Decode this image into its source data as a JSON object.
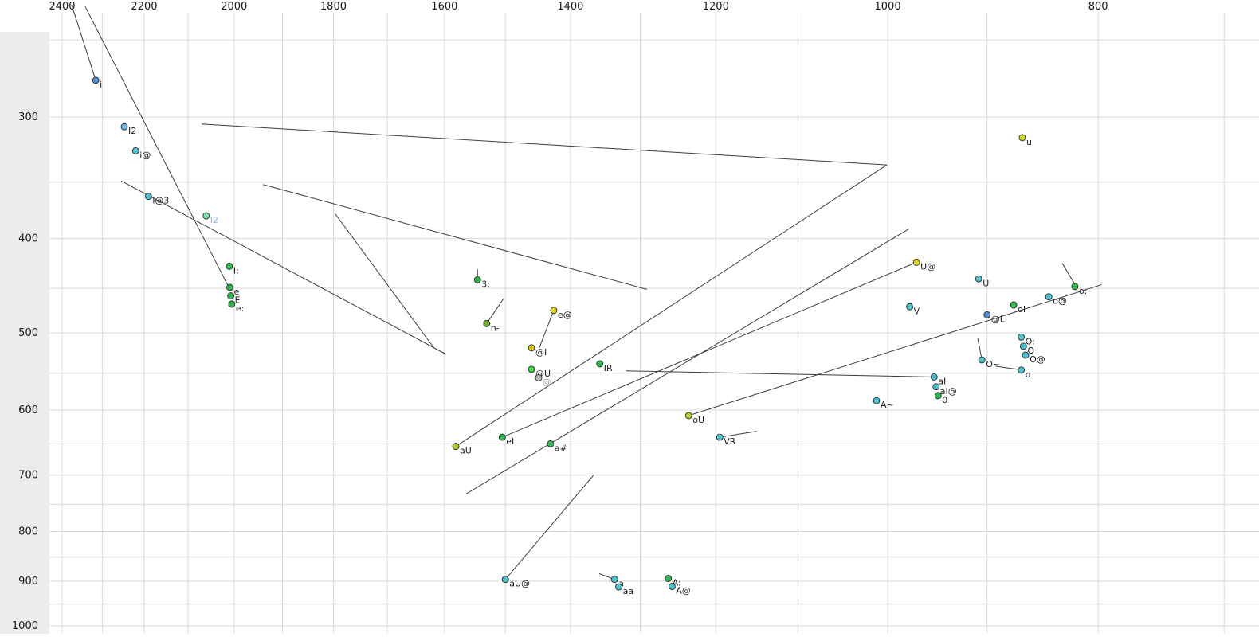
{
  "chart_data": {
    "type": "scatter",
    "title": "",
    "x_axis": {
      "scale": "log",
      "reversed": true,
      "tick_labels": [
        2400,
        2200,
        2000,
        1800,
        1600,
        1400,
        1200,
        1000,
        800
      ],
      "grid": {
        "from": 2400,
        "to": 700,
        "step": 100
      }
    },
    "y_axis": {
      "scale": "log",
      "reversed": true,
      "tick_labels": [
        300,
        400,
        500,
        600,
        700,
        800,
        900,
        1000
      ],
      "grid": {
        "from": 250,
        "to": 1000,
        "step": 50
      }
    },
    "colors": {
      "grid": "#d8d8d8",
      "trajectory_line": "#3c3c3c",
      "tick_text": "#1a1a1a",
      "point_stroke": "#2a2a2a",
      "default_label": "#1a1a1a",
      "left_band": "#ececec"
    },
    "points": [
      {
        "label": "i",
        "f2": 2316,
        "f1": 275,
        "color": "#4f8fd4"
      },
      {
        "label": "I2",
        "f2": 2247,
        "f1": 307,
        "color": "#6fb7e8"
      },
      {
        "label": "i@",
        "f2": 2220,
        "f1": 325,
        "color": "#49c3cf"
      },
      {
        "label": "i@3",
        "f2": 2190,
        "f1": 362,
        "color": "#49c3cf"
      },
      {
        "label": "I2",
        "f2": 2060,
        "f1": 379,
        "color": "#7be6b4",
        "label_color": "#8ab4e8"
      },
      {
        "label": "I:",
        "f2": 2010,
        "f1": 427,
        "color": "#2eb84d"
      },
      {
        "label": "e",
        "f2": 2009,
        "f1": 449,
        "color": "#2eb84d"
      },
      {
        "label": "E",
        "f2": 2007,
        "f1": 458,
        "color": "#2eb84d"
      },
      {
        "label": "e:",
        "f2": 2005,
        "f1": 467,
        "color": "#2eb84d"
      },
      {
        "label": "3:",
        "f2": 1545,
        "f1": 441,
        "color": "#2eb84d"
      },
      {
        "label": "n-",
        "f2": 1530,
        "f1": 489,
        "color": "#66b022"
      },
      {
        "label": "e@",
        "f2": 1425,
        "f1": 474,
        "color": "#e3d61f"
      },
      {
        "label": "@I",
        "f2": 1459,
        "f1": 518,
        "color": "#d6c51d"
      },
      {
        "label": "@U",
        "f2": 1459,
        "f1": 545,
        "color": "#3ed43e"
      },
      {
        "label": "@",
        "f2": 1448,
        "f1": 556,
        "color": "#bbbbbb",
        "label_color": "#9a9a9a"
      },
      {
        "label": "IR",
        "f2": 1357,
        "f1": 538,
        "color": "#2eb84d"
      },
      {
        "label": "aU",
        "f2": 1581,
        "f1": 654,
        "color": "#b5cf1f"
      },
      {
        "label": "eI",
        "f2": 1505,
        "f1": 640,
        "color": "#2eb84d"
      },
      {
        "label": "a#",
        "f2": 1430,
        "f1": 650,
        "color": "#2eb84d"
      },
      {
        "label": "oU",
        "f2": 1235,
        "f1": 608,
        "color": "#b5cf1f"
      },
      {
        "label": "VR",
        "f2": 1195,
        "f1": 640,
        "color": "#49c3cf"
      },
      {
        "label": "aU@",
        "f2": 1500,
        "f1": 896,
        "color": "#49c3cf"
      },
      {
        "label": "a",
        "f2": 1336,
        "f1": 896,
        "color": "#49c3cf"
      },
      {
        "label": "aa",
        "f2": 1330,
        "f1": 912,
        "color": "#49c3cf"
      },
      {
        "label": "A:",
        "f2": 1262,
        "f1": 894,
        "color": "#2eb84d"
      },
      {
        "label": "A@",
        "f2": 1257,
        "f1": 911,
        "color": "#49c3cf"
      },
      {
        "label": "U@",
        "f2": 970,
        "f1": 423,
        "color": "#e3d61f"
      },
      {
        "label": "u",
        "f2": 867,
        "f1": 315,
        "color": "#cde01f"
      },
      {
        "label": "U",
        "f2": 908,
        "f1": 440,
        "color": "#49c3cf"
      },
      {
        "label": "V",
        "f2": 977,
        "f1": 470,
        "color": "#49c3cf"
      },
      {
        "label": "@L",
        "f2": 900,
        "f1": 479,
        "color": "#4f8fd4"
      },
      {
        "label": "oI",
        "f2": 875,
        "f1": 468,
        "color": "#2eb84d"
      },
      {
        "label": "o@",
        "f2": 843,
        "f1": 459,
        "color": "#49c3cf"
      },
      {
        "label": "o:",
        "f2": 820,
        "f1": 448,
        "color": "#2eb84d"
      },
      {
        "label": "O:",
        "f2": 868,
        "f1": 505,
        "color": "#49c3cf"
      },
      {
        "label": "O",
        "f2": 866,
        "f1": 516,
        "color": "#49c3cf"
      },
      {
        "label": "O@",
        "f2": 864,
        "f1": 527,
        "color": "#49c3cf"
      },
      {
        "label": "O~",
        "f2": 905,
        "f1": 533,
        "color": "#49c3cf"
      },
      {
        "label": "o",
        "f2": 868,
        "f1": 546,
        "color": "#49c3cf"
      },
      {
        "label": "aI",
        "f2": 952,
        "f1": 555,
        "color": "#49c3cf"
      },
      {
        "label": "aI@",
        "f2": 950,
        "f1": 568,
        "color": "#49c3cf"
      },
      {
        "label": "0",
        "f2": 948,
        "f1": 580,
        "color": "#2eb84d"
      },
      {
        "label": "A~",
        "f2": 1012,
        "f1": 587,
        "color": "#49c3cf"
      }
    ],
    "lines": [
      {
        "f2a": 2376,
        "f1a": 230,
        "f2b": 2316,
        "f1b": 275
      },
      {
        "f2a": 2342,
        "f1a": 231,
        "f2b": 2009,
        "f1b": 451
      },
      {
        "f2a": 2254,
        "f1a": 349,
        "f2b": 1597,
        "f1b": 526
      },
      {
        "f2a": 2070,
        "f1a": 305,
        "f2b": 1001,
        "f1b": 336
      },
      {
        "f2a": 1939,
        "f1a": 352,
        "f2b": 1291,
        "f1b": 451
      },
      {
        "f2a": 1797,
        "f1a": 377,
        "f2b": 1618,
        "f1b": 518
      },
      {
        "f2a": 1001,
        "f1a": 336,
        "f2b": 1581,
        "f1b": 654
      },
      {
        "f2a": 978,
        "f1a": 391,
        "f2b": 1564,
        "f1b": 732
      },
      {
        "f2a": 970,
        "f1a": 423,
        "f2b": 1505,
        "f1b": 640
      },
      {
        "f2a": 1320,
        "f1a": 547,
        "f2b": 952,
        "f1b": 555
      },
      {
        "f2a": 1235,
        "f1a": 608,
        "f2b": 797,
        "f1b": 446
      },
      {
        "f2a": 1366,
        "f1a": 700,
        "f2b": 1500,
        "f1b": 896
      },
      {
        "f2a": 1425,
        "f1a": 474,
        "f2b": 1447,
        "f1b": 518
      },
      {
        "f2a": 1530,
        "f1a": 489,
        "f2b": 1503,
        "f1b": 461
      },
      {
        "f2a": 1545,
        "f1a": 430,
        "f2b": 1545,
        "f1b": 444
      },
      {
        "f2a": 1195,
        "f1a": 640,
        "f2b": 1149,
        "f1b": 631
      },
      {
        "f2a": 905,
        "f1a": 533,
        "f2b": 909,
        "f1b": 506
      },
      {
        "f2a": 892,
        "f1a": 541,
        "f2b": 867,
        "f1b": 546
      },
      {
        "f2a": 831,
        "f1a": 424,
        "f2b": 818,
        "f1b": 450
      },
      {
        "f2a": 1358,
        "f1a": 884,
        "f2b": 1334,
        "f1b": 897
      }
    ]
  }
}
